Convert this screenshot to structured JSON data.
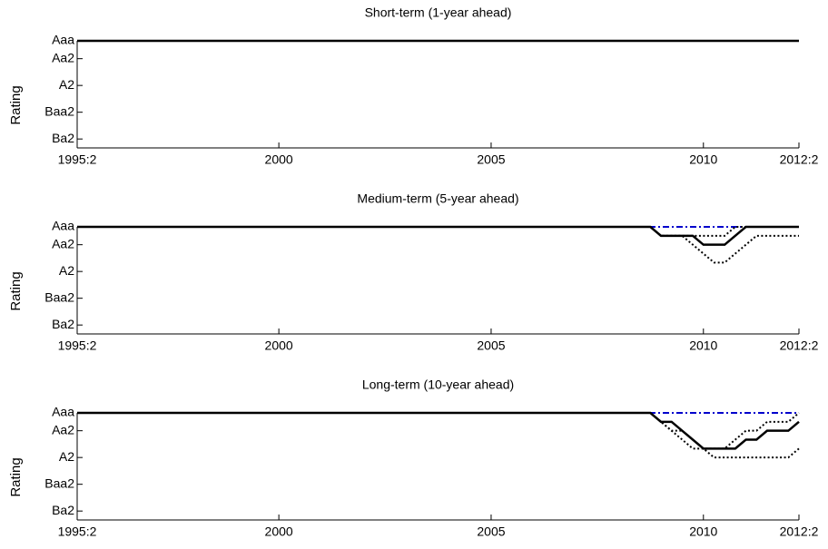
{
  "chart_data": [
    {
      "type": "line",
      "title": "Short-term (1-year ahead)",
      "y_label": "Rating",
      "x": [
        1995.25,
        2008.5,
        2008.75,
        2009,
        2009.25,
        2009.5,
        2009.75,
        2010,
        2010.25,
        2010.5,
        2010.75,
        2011,
        2011.25,
        2011.5,
        2011.75,
        2012,
        2012.25
      ],
      "xlim": [
        1995.25,
        2012.25
      ],
      "xticks": [
        {
          "value": 1995.25,
          "label": "1995:2"
        },
        2000,
        2005,
        2010,
        {
          "value": 2012.25,
          "label": "2012:2"
        }
      ],
      "ylim": [
        13,
        1
      ],
      "yticks": [
        {
          "value": 1,
          "label": "Aaa"
        },
        {
          "value": 3,
          "label": "Aa2"
        },
        {
          "value": 6,
          "label": "A2"
        },
        {
          "value": 9,
          "label": "Baa2"
        },
        {
          "value": 12,
          "label": "Ba2"
        }
      ],
      "series": [
        {
          "color": "#0000cc",
          "style": "dashdot",
          "values": [
            1,
            1,
            1,
            1,
            1,
            1,
            1,
            1,
            1,
            1,
            1,
            1,
            1,
            1,
            1,
            1,
            1
          ]
        },
        {
          "color": "#000000",
          "style": "dotted",
          "values": [
            1,
            1,
            1,
            1,
            1,
            1,
            1,
            1,
            1,
            1,
            1,
            1,
            1,
            1,
            1,
            1,
            1
          ]
        },
        {
          "color": "#000000",
          "style": "dotted",
          "values": [
            1,
            1,
            1,
            1,
            1,
            1,
            1,
            1,
            1,
            1,
            1,
            1,
            1,
            1,
            1,
            1,
            1
          ]
        },
        {
          "color": "#000000",
          "style": "solid",
          "values": [
            1,
            1,
            1,
            1,
            1,
            1,
            1,
            1,
            1,
            1,
            1,
            1,
            1,
            1,
            1,
            1,
            1
          ]
        }
      ]
    },
    {
      "type": "line",
      "title": "Medium-term (5-year ahead)",
      "y_label": "Rating",
      "x": [
        1995.25,
        2008.5,
        2008.75,
        2009,
        2009.25,
        2009.5,
        2009.75,
        2010,
        2010.25,
        2010.5,
        2010.75,
        2011,
        2011.25,
        2011.5,
        2011.75,
        2012,
        2012.25
      ],
      "xlim": [
        1995.25,
        2012.25
      ],
      "xticks": [
        {
          "value": 1995.25,
          "label": "1995:2"
        },
        2000,
        2005,
        2010,
        {
          "value": 2012.25,
          "label": "2012:2"
        }
      ],
      "ylim": [
        13,
        1
      ],
      "yticks": [
        {
          "value": 1,
          "label": "Aaa"
        },
        {
          "value": 3,
          "label": "Aa2"
        },
        {
          "value": 6,
          "label": "A2"
        },
        {
          "value": 9,
          "label": "Baa2"
        },
        {
          "value": 12,
          "label": "Ba2"
        }
      ],
      "series": [
        {
          "color": "#0000cc",
          "style": "dashdot",
          "values": [
            1,
            1,
            1,
            1,
            1,
            1,
            1,
            1,
            1,
            1,
            1,
            1,
            1,
            1,
            1,
            1,
            1
          ]
        },
        {
          "color": "#000000",
          "style": "dotted",
          "values": [
            1,
            1,
            1,
            2,
            2,
            2,
            2,
            2,
            2,
            2,
            1,
            1,
            1,
            1,
            1,
            1,
            1
          ]
        },
        {
          "color": "#000000",
          "style": "dotted",
          "values": [
            1,
            1,
            1,
            2,
            2,
            2,
            3,
            4,
            5,
            5,
            4,
            3,
            2,
            2,
            2,
            2,
            2
          ]
        },
        {
          "color": "#000000",
          "style": "solid",
          "values": [
            1,
            1,
            1,
            2,
            2,
            2,
            2,
            3,
            3,
            3,
            2,
            1,
            1,
            1,
            1,
            1,
            1
          ]
        }
      ]
    },
    {
      "type": "line",
      "title": "Long-term (10-year ahead)",
      "y_label": "Rating",
      "x": [
        1995.25,
        2008.5,
        2008.75,
        2009,
        2009.25,
        2009.5,
        2009.75,
        2010,
        2010.25,
        2010.5,
        2010.75,
        2011,
        2011.25,
        2011.5,
        2011.75,
        2012,
        2012.25
      ],
      "xlim": [
        1995.25,
        2012.25
      ],
      "xticks": [
        {
          "value": 1995.25,
          "label": "1995:2"
        },
        2000,
        2005,
        2010,
        {
          "value": 2012.25,
          "label": "2012:2"
        }
      ],
      "ylim": [
        13,
        1
      ],
      "yticks": [
        {
          "value": 1,
          "label": "Aaa"
        },
        {
          "value": 3,
          "label": "Aa2"
        },
        {
          "value": 6,
          "label": "A2"
        },
        {
          "value": 9,
          "label": "Baa2"
        },
        {
          "value": 12,
          "label": "Ba2"
        }
      ],
      "series": [
        {
          "color": "#0000cc",
          "style": "dashdot",
          "values": [
            1,
            1,
            1,
            1,
            1,
            1,
            1,
            1,
            1,
            1,
            1,
            1,
            1,
            1,
            1,
            1,
            1
          ]
        },
        {
          "color": "#000000",
          "style": "dotted",
          "values": [
            1,
            1,
            1,
            2,
            3,
            3,
            4,
            5,
            5,
            5,
            4,
            3,
            3,
            2,
            2,
            2,
            1
          ]
        },
        {
          "color": "#000000",
          "style": "dotted",
          "values": [
            1,
            1,
            1,
            2,
            3,
            4,
            5,
            5,
            6,
            6,
            6,
            6,
            6,
            6,
            6,
            6,
            5
          ]
        },
        {
          "color": "#000000",
          "style": "solid",
          "values": [
            1,
            1,
            1,
            2,
            2,
            3,
            4,
            5,
            5,
            5,
            5,
            4,
            4,
            3,
            3,
            3,
            2
          ]
        }
      ]
    }
  ]
}
